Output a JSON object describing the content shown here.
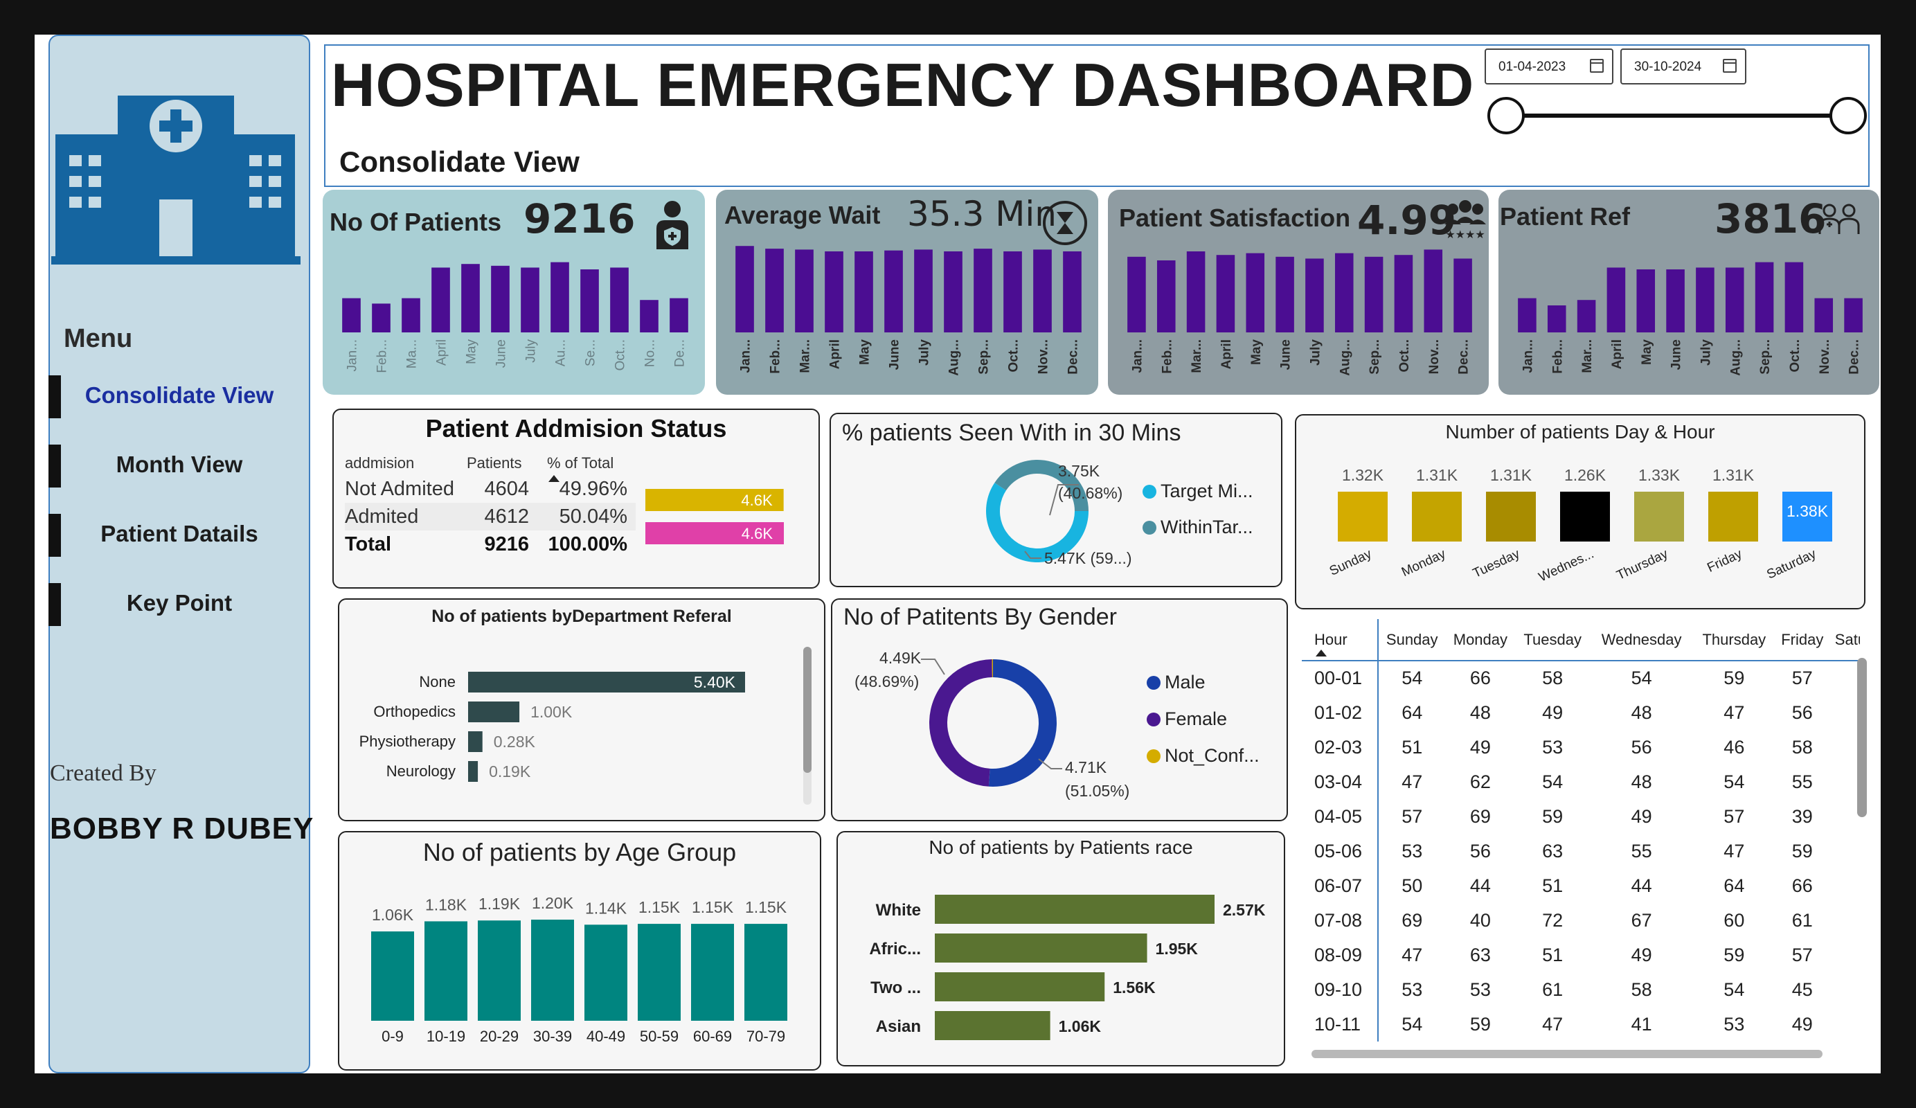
{
  "sidebar": {
    "menu_title": "Menu",
    "items": [
      {
        "label": "Consolidate View",
        "active": true
      },
      {
        "label": "Month View",
        "active": false
      },
      {
        "label": "Patient Datails",
        "active": false
      },
      {
        "label": "Key Point",
        "active": false
      }
    ],
    "created_by_label": "Created By",
    "creator": "BOBBY R DUBEY"
  },
  "header": {
    "title": "HOSPITAL EMERGENCY DASHBOARD",
    "subtitle": "Consolidate View",
    "date_start": "01-04-2023",
    "date_end": "30-10-2024"
  },
  "kpis": {
    "patients": {
      "label": "No Of Patients",
      "value": "9216",
      "color": "#a9cfd4"
    },
    "wait": {
      "label": "Average  Wait",
      "value": "35.3 Min",
      "color": "#8fa6ac"
    },
    "satisfaction": {
      "label": "Patient Satisfaction",
      "value": "4.99",
      "color": "#8f9ca2"
    },
    "referral": {
      "label": "Patient Ref",
      "value": "3816",
      "color": "#8f9ca2"
    }
  },
  "chart_data": [
    {
      "id": "kpi-patients-monthly",
      "type": "bar",
      "categories": [
        "Jan...",
        "Feb...",
        "Ma...",
        "April",
        "May",
        "June",
        "July",
        "Au...",
        "Se...",
        "Oct...",
        "No...",
        "De..."
      ],
      "values": [
        0.38,
        0.32,
        0.38,
        0.72,
        0.76,
        0.74,
        0.72,
        0.78,
        0.7,
        0.72,
        0.36,
        0.38
      ]
    },
    {
      "id": "kpi-wait-monthly",
      "type": "bar",
      "categories": [
        "Jan...",
        "Feb...",
        "Mar...",
        "April",
        "May",
        "June",
        "July",
        "Aug...",
        "Sep...",
        "Oct...",
        "Nov...",
        "Dec..."
      ],
      "values": [
        0.96,
        0.93,
        0.92,
        0.9,
        0.9,
        0.91,
        0.92,
        0.9,
        0.93,
        0.9,
        0.92,
        0.9
      ]
    },
    {
      "id": "kpi-satisfaction-monthly",
      "type": "bar",
      "categories": [
        "Jan...",
        "Feb...",
        "Mar...",
        "April",
        "May",
        "June",
        "July",
        "Aug...",
        "Sep...",
        "Oct...",
        "Nov...",
        "Dec..."
      ],
      "values": [
        0.84,
        0.8,
        0.9,
        0.86,
        0.88,
        0.84,
        0.82,
        0.88,
        0.84,
        0.86,
        0.92,
        0.82
      ]
    },
    {
      "id": "kpi-referral-monthly",
      "type": "bar",
      "categories": [
        "Jan...",
        "Feb...",
        "Mar...",
        "April",
        "May",
        "June",
        "July",
        "Aug...",
        "Sep...",
        "Oct...",
        "Nov...",
        "Dec..."
      ],
      "values": [
        0.38,
        0.3,
        0.36,
        0.72,
        0.7,
        0.7,
        0.72,
        0.72,
        0.78,
        0.78,
        0.38,
        0.38
      ]
    },
    {
      "id": "admission-status",
      "type": "table",
      "title": "Patient Addmision Status",
      "columns": [
        "addmision",
        "Patients",
        "% of Total"
      ],
      "rows": [
        {
          "name": "Not Admited",
          "patients": 4604,
          "pct": "49.96%",
          "bar_label": "4.6K",
          "color": "#d9b400"
        },
        {
          "name": "Admited",
          "patients": 4612,
          "pct": "50.04%",
          "bar_label": "4.6K",
          "color": "#e040a8"
        }
      ],
      "total": {
        "name": "Total",
        "patients": 9216,
        "pct": "100.00%"
      }
    },
    {
      "id": "seen-within-30",
      "type": "pie",
      "title": "% patients Seen With in 30 Mins",
      "slices": [
        {
          "name": "Target Mi...",
          "value": 3750,
          "label": "3.75K",
          "pct_label": "(40.68%)",
          "color": "#4a8fa0"
        },
        {
          "name": "WithinTar...",
          "value": 5470,
          "label": "5.47K (59...)",
          "color": "#18b4e0"
        }
      ],
      "legend_colors": [
        "#18b4e0",
        "#4a8fa0"
      ]
    },
    {
      "id": "day-of-week",
      "type": "bar",
      "title": "Number of patients Day & Hour",
      "categories": [
        "Sunday",
        "Monday",
        "Tuesday",
        "Wednes...",
        "Thursday",
        "Friday",
        "Saturday"
      ],
      "values": [
        1320,
        1310,
        1310,
        1260,
        1330,
        1310,
        1380
      ],
      "labels": [
        "1.32K",
        "1.31K",
        "1.31K",
        "1.26K",
        "1.33K",
        "1.31K",
        "1.38K"
      ],
      "colors": [
        "#d4ac00",
        "#c4a400",
        "#a88c00",
        "#000000",
        "#aaa640",
        "#bfa000",
        "#1e90ff"
      ]
    },
    {
      "id": "department-referral",
      "type": "bar",
      "title": "No of patients byDepartment Referal",
      "categories": [
        "None",
        "Orthopedics",
        "Physiotherapy",
        "Neurology"
      ],
      "values": [
        5400,
        1000,
        280,
        190
      ],
      "labels": [
        "5.40K",
        "1.00K",
        "0.28K",
        "0.19K"
      ]
    },
    {
      "id": "gender",
      "type": "pie",
      "title": "No of Patitents By Gender",
      "slices": [
        {
          "name": "Male",
          "value": 4710,
          "label": "4.71K",
          "pct_label": "(51.05%)",
          "color": "#1840a8"
        },
        {
          "name": "Female",
          "value": 4490,
          "label": "4.49K",
          "pct_label": "(48.69%)",
          "color": "#4a1890"
        },
        {
          "name": "Not_Conf...",
          "value": 24,
          "color": "#d4ac00"
        }
      ]
    },
    {
      "id": "age-group",
      "type": "bar",
      "title": "No of patients by Age Group",
      "categories": [
        "0-9",
        "10-19",
        "20-29",
        "30-39",
        "40-49",
        "50-59",
        "60-69",
        "70-79"
      ],
      "values": [
        1060,
        1180,
        1190,
        1200,
        1140,
        1150,
        1150,
        1150
      ],
      "labels": [
        "1.06K",
        "1.18K",
        "1.19K",
        "1.20K",
        "1.14K",
        "1.15K",
        "1.15K",
        "1.15K"
      ]
    },
    {
      "id": "race",
      "type": "bar",
      "title": "No of patients by Patients race",
      "categories": [
        "White",
        "Afric...",
        "Two ...",
        "Asian"
      ],
      "values": [
        2570,
        1950,
        1560,
        1060
      ],
      "labels": [
        "2.57K",
        "1.95K",
        "1.56K",
        "1.06K"
      ]
    }
  ],
  "hour_table": {
    "columns": [
      "Hour",
      "Sunday",
      "Monday",
      "Tuesday",
      "Wednesday",
      "Thursday",
      "Friday",
      "Satur"
    ],
    "rows": [
      [
        "00-01",
        "54",
        "66",
        "58",
        "54",
        "59",
        "57",
        ""
      ],
      [
        "01-02",
        "64",
        "48",
        "49",
        "48",
        "47",
        "56",
        ""
      ],
      [
        "02-03",
        "51",
        "49",
        "53",
        "56",
        "46",
        "58",
        ""
      ],
      [
        "03-04",
        "47",
        "62",
        "54",
        "48",
        "54",
        "55",
        ""
      ],
      [
        "04-05",
        "57",
        "69",
        "59",
        "49",
        "57",
        "39",
        ""
      ],
      [
        "05-06",
        "53",
        "56",
        "63",
        "55",
        "47",
        "59",
        ""
      ],
      [
        "06-07",
        "50",
        "44",
        "51",
        "44",
        "64",
        "66",
        ""
      ],
      [
        "07-08",
        "69",
        "40",
        "72",
        "67",
        "60",
        "61",
        ""
      ],
      [
        "08-09",
        "47",
        "63",
        "51",
        "49",
        "59",
        "57",
        ""
      ],
      [
        "09-10",
        "53",
        "53",
        "61",
        "58",
        "54",
        "45",
        ""
      ],
      [
        "10-11",
        "54",
        "59",
        "47",
        "41",
        "53",
        "49",
        ""
      ]
    ]
  },
  "colors": {
    "bar_purple": "#4b0d92",
    "bar_dark_teal": "#2f4a4c",
    "bar_teal": "#008580",
    "bar_olive": "#5b7330",
    "accent_blue": "#3f7fc0",
    "hospital_blue": "#1565a0"
  }
}
